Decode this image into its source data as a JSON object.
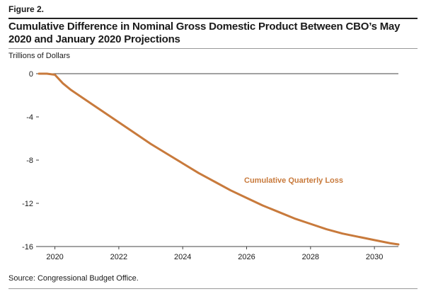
{
  "figure_label": "Figure 2.",
  "title": "Cumulative Difference in Nominal Gross Domestic Product Between CBO’s May 2020 and January 2020 Projections",
  "units": "Trillions of Dollars",
  "source": "Source: Congressional Budget Office.",
  "colors": {
    "line": "#c87a3c",
    "axis": "#444444",
    "grid": "#cccccc"
  },
  "chart_data": {
    "type": "line",
    "title": "Cumulative Difference in Nominal Gross Domestic Product Between CBO’s May 2020 and January 2020 Projections",
    "xlabel": "",
    "ylabel": "Trillions of Dollars",
    "xlim": [
      2019.5,
      2030.75
    ],
    "ylim": [
      -16,
      0
    ],
    "x_ticks": [
      2020,
      2022,
      2024,
      2026,
      2028,
      2030
    ],
    "y_ticks": [
      0,
      -4,
      -8,
      -12,
      -16
    ],
    "grid": false,
    "series": [
      {
        "name": "Cumulative Quarterly Loss",
        "x": [
          2019.5,
          2019.75,
          2020.0,
          2020.25,
          2020.5,
          2021.0,
          2021.5,
          2022.0,
          2022.5,
          2023.0,
          2023.5,
          2024.0,
          2024.5,
          2025.0,
          2025.5,
          2026.0,
          2026.5,
          2027.0,
          2027.5,
          2028.0,
          2028.5,
          2029.0,
          2029.5,
          2030.0,
          2030.5,
          2030.75
        ],
        "values": [
          0,
          0,
          -0.1,
          -0.9,
          -1.5,
          -2.5,
          -3.5,
          -4.5,
          -5.5,
          -6.5,
          -7.4,
          -8.3,
          -9.2,
          -10.0,
          -10.8,
          -11.5,
          -12.2,
          -12.8,
          -13.4,
          -13.9,
          -14.4,
          -14.8,
          -15.1,
          -15.4,
          -15.7,
          -15.8
        ]
      }
    ]
  }
}
